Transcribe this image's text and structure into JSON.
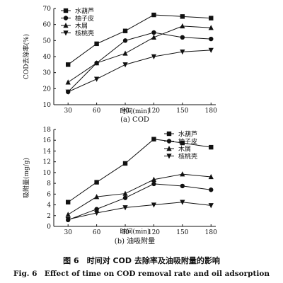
{
  "figure": {
    "caption_cn": "图 6　时间对 COD 去除率及油吸附量的影响",
    "caption_en": "Fig. 6　Effect of time on COD removal rate and oil adsorption"
  },
  "chart_data": [
    {
      "type": "line",
      "subtitle": "(a) COD",
      "xlabel": "时间(min)",
      "ylabel": "COD去除率(%)",
      "x": [
        30,
        60,
        90,
        120,
        150,
        180
      ],
      "xlim": [
        15,
        185
      ],
      "ylim": [
        10,
        70
      ],
      "xticks": [
        30,
        60,
        90,
        120,
        150,
        180
      ],
      "yticks": [
        10,
        20,
        30,
        40,
        50,
        60,
        70
      ],
      "legend_position": "top-left",
      "grid": false,
      "series": [
        {
          "name": "水葫芦",
          "marker": "square",
          "values": [
            35,
            48,
            56,
            66,
            65,
            64
          ]
        },
        {
          "name": "柚子皮",
          "marker": "circle",
          "values": [
            18,
            36,
            50,
            55,
            52,
            51
          ]
        },
        {
          "name": "木屑",
          "marker": "triangle-up",
          "values": [
            24,
            36,
            42,
            52,
            59,
            58
          ]
        },
        {
          "name": "核桃壳",
          "marker": "triangle-down",
          "values": [
            18,
            26,
            35,
            40,
            43,
            44
          ]
        }
      ]
    },
    {
      "type": "line",
      "subtitle": "(b) 油吸附量",
      "xlabel": "时间(min)",
      "ylabel": "吸附量(mg/g)",
      "x": [
        30,
        60,
        90,
        120,
        150,
        180
      ],
      "xlim": [
        15,
        185
      ],
      "ylim": [
        0,
        18
      ],
      "xticks": [
        30,
        60,
        90,
        120,
        150,
        180
      ],
      "yticks": [
        0,
        2,
        4,
        6,
        8,
        10,
        12,
        14,
        16,
        18
      ],
      "legend_position": "top-right",
      "grid": false,
      "series": [
        {
          "name": "水葫芦",
          "marker": "square",
          "values": [
            4.5,
            8.2,
            11.7,
            16.2,
            15.5,
            14.7
          ]
        },
        {
          "name": "柚子皮",
          "marker": "circle",
          "values": [
            1.2,
            3.2,
            5.3,
            7.9,
            7.5,
            6.8
          ]
        },
        {
          "name": "木屑",
          "marker": "triangle-up",
          "values": [
            2.2,
            5.5,
            6.1,
            8.7,
            9.7,
            9.2
          ]
        },
        {
          "name": "核桃壳",
          "marker": "triangle-down",
          "values": [
            1.3,
            2.5,
            3.5,
            4.0,
            4.5,
            3.9
          ]
        }
      ]
    }
  ]
}
